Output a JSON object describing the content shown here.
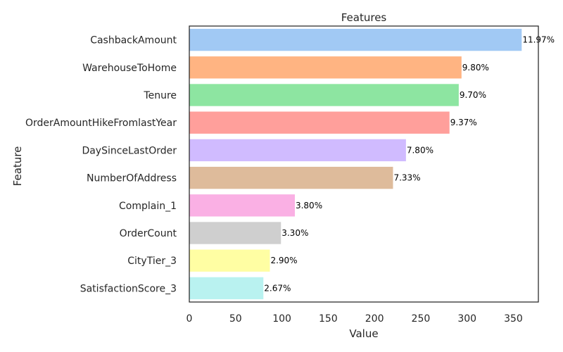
{
  "chart_data": {
    "type": "bar",
    "orientation": "horizontal",
    "title": "Features",
    "xlabel": "Value",
    "ylabel": "Feature",
    "xlim": [
      0,
      377
    ],
    "xticks": [
      0,
      50,
      100,
      150,
      200,
      250,
      300,
      350
    ],
    "grid": false,
    "categories": [
      "CashbackAmount",
      "WarehouseToHome",
      "Tenure",
      "OrderAmountHikeFromlastYear",
      "DaySinceLastOrder",
      "NumberOfAddress",
      "Complain_1",
      "OrderCount",
      "CityTier_3",
      "SatisfactionScore_3"
    ],
    "values": [
      359,
      294,
      291,
      281,
      234,
      220,
      114,
      99,
      87,
      80
    ],
    "data_labels": [
      "11.97%",
      "9.80%",
      "9.70%",
      "9.37%",
      "7.80%",
      "7.33%",
      "3.80%",
      "3.30%",
      "2.90%",
      "2.67%"
    ],
    "colors": [
      "#a1c9f4",
      "#ffb482",
      "#8de5a1",
      "#ff9f9b",
      "#d0bbff",
      "#debb9b",
      "#fab0e4",
      "#cfcfcf",
      "#fffea3",
      "#b9f2f0"
    ]
  }
}
